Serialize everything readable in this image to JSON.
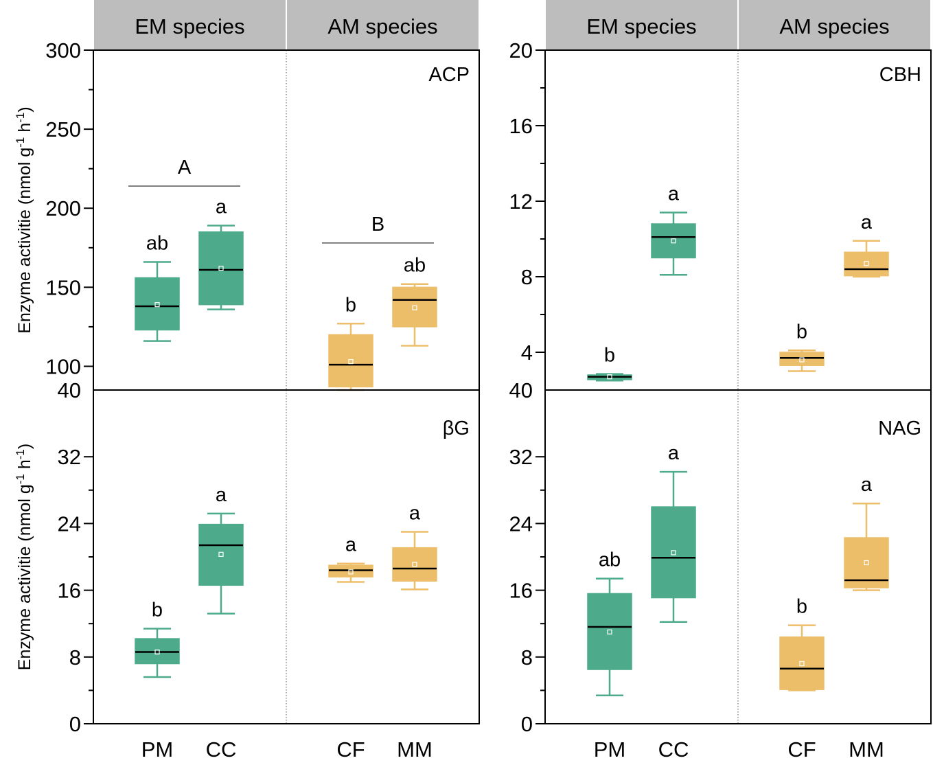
{
  "colors": {
    "EM": "#4dab8c",
    "AM": "#edbe6a",
    "header": "#bdbdbd"
  },
  "y_axis_label": {
    "text": "Enzyme activitie (nmol g",
    "sup1": "-1",
    "mid": " h",
    "sup2": "-1",
    "end": ")"
  },
  "categories": [
    "PM",
    "CC",
    "CF",
    "MM"
  ],
  "groups": [
    "EM species",
    "AM species"
  ],
  "chart_data": [
    {
      "type": "box",
      "panel": "ACP",
      "title": "ACP",
      "ylim": [
        85,
        300
      ],
      "yticks": [
        100,
        150,
        200,
        250,
        300
      ],
      "ytick_labels": [
        "100",
        "150",
        "200",
        "250",
        "300"
      ],
      "bottom_tick_label": "40",
      "headers": [
        "EM species",
        "AM species"
      ],
      "boxes": [
        {
          "category": "PM",
          "group": "EM",
          "whisker_low": 116,
          "q1": 123,
          "median": 138,
          "q3": 156,
          "whisker_high": 166,
          "mean": 139,
          "sig": "ab"
        },
        {
          "category": "CC",
          "group": "EM",
          "whisker_low": 136,
          "q1": 139,
          "median": 161,
          "q3": 185,
          "whisker_high": 189,
          "mean": 162,
          "sig": "a"
        },
        {
          "category": "CF",
          "group": "AM",
          "whisker_low": 85,
          "q1": 87,
          "median": 101,
          "q3": 120,
          "whisker_high": 127,
          "mean": 103,
          "sig": "b"
        },
        {
          "category": "MM",
          "group": "AM",
          "whisker_low": 113,
          "q1": 125,
          "median": 142,
          "q3": 150,
          "whisker_high": 152,
          "mean": 137,
          "sig": "ab"
        }
      ],
      "group_sig": [
        {
          "label": "A",
          "from": "PM",
          "to": "CC",
          "y": 214
        },
        {
          "label": "B",
          "from": "CF",
          "to": "MM",
          "y": 178
        }
      ]
    },
    {
      "type": "box",
      "panel": "CBH",
      "title": "CBH",
      "ylim": [
        2,
        20
      ],
      "yticks": [
        4,
        8,
        12,
        16,
        20
      ],
      "ytick_labels": [
        "4",
        "8",
        "12",
        "16",
        "20"
      ],
      "bottom_tick_label": "40",
      "headers": [
        "EM species",
        "AM species"
      ],
      "boxes": [
        {
          "category": "PM",
          "group": "EM",
          "whisker_low": 2.5,
          "q1": 2.55,
          "median": 2.7,
          "q3": 2.8,
          "whisker_high": 2.85,
          "mean": 2.7,
          "sig": "b"
        },
        {
          "category": "CC",
          "group": "EM",
          "whisker_low": 8.1,
          "q1": 9.0,
          "median": 10.1,
          "q3": 10.8,
          "whisker_high": 11.4,
          "mean": 9.9,
          "sig": "a"
        },
        {
          "category": "CF",
          "group": "AM",
          "whisker_low": 3.0,
          "q1": 3.3,
          "median": 3.7,
          "q3": 4.0,
          "whisker_high": 4.1,
          "mean": 3.6,
          "sig": "b"
        },
        {
          "category": "MM",
          "group": "AM",
          "whisker_low": 8.0,
          "q1": 8.05,
          "median": 8.4,
          "q3": 9.3,
          "whisker_high": 9.9,
          "mean": 8.7,
          "sig": "a"
        }
      ],
      "group_sig": []
    },
    {
      "type": "box",
      "panel": "βG",
      "title": "βG",
      "ylim": [
        0,
        40
      ],
      "yticks": [
        0,
        8,
        16,
        24,
        32
      ],
      "ytick_labels": [
        "0",
        "8",
        "16",
        "24",
        "32"
      ],
      "boxes": [
        {
          "category": "PM",
          "group": "EM",
          "whisker_low": 5.6,
          "q1": 7.2,
          "median": 8.6,
          "q3": 10.2,
          "whisker_high": 11.4,
          "mean": 8.6,
          "sig": "b"
        },
        {
          "category": "CC",
          "group": "EM",
          "whisker_low": 13.2,
          "q1": 16.6,
          "median": 21.4,
          "q3": 23.9,
          "whisker_high": 25.2,
          "mean": 20.3,
          "sig": "a"
        },
        {
          "category": "CF",
          "group": "AM",
          "whisker_low": 17.0,
          "q1": 17.6,
          "median": 18.4,
          "q3": 19.0,
          "whisker_high": 19.2,
          "mean": 18.2,
          "sig": "a"
        },
        {
          "category": "MM",
          "group": "AM",
          "whisker_low": 16.1,
          "q1": 17.1,
          "median": 18.6,
          "q3": 21.1,
          "whisker_high": 23.0,
          "mean": 19.1,
          "sig": "a"
        }
      ],
      "group_sig": []
    },
    {
      "type": "box",
      "panel": "NAG",
      "title": "NAG",
      "ylim": [
        0,
        40
      ],
      "yticks": [
        0,
        8,
        16,
        24,
        32
      ],
      "ytick_labels": [
        "0",
        "8",
        "16",
        "24",
        "32"
      ],
      "boxes": [
        {
          "category": "PM",
          "group": "EM",
          "whisker_low": 3.4,
          "q1": 6.5,
          "median": 11.6,
          "q3": 15.6,
          "whisker_high": 17.4,
          "mean": 11.0,
          "sig": "ab"
        },
        {
          "category": "CC",
          "group": "EM",
          "whisker_low": 12.2,
          "q1": 15.1,
          "median": 19.9,
          "q3": 26.0,
          "whisker_high": 30.2,
          "mean": 20.5,
          "sig": "a"
        },
        {
          "category": "CF",
          "group": "AM",
          "whisker_low": 4.0,
          "q1": 4.1,
          "median": 6.6,
          "q3": 10.4,
          "whisker_high": 11.8,
          "mean": 7.2,
          "sig": "b"
        },
        {
          "category": "MM",
          "group": "AM",
          "whisker_low": 16.0,
          "q1": 16.3,
          "median": 17.2,
          "q3": 22.3,
          "whisker_high": 26.4,
          "mean": 19.3,
          "sig": "a"
        }
      ],
      "group_sig": []
    }
  ]
}
